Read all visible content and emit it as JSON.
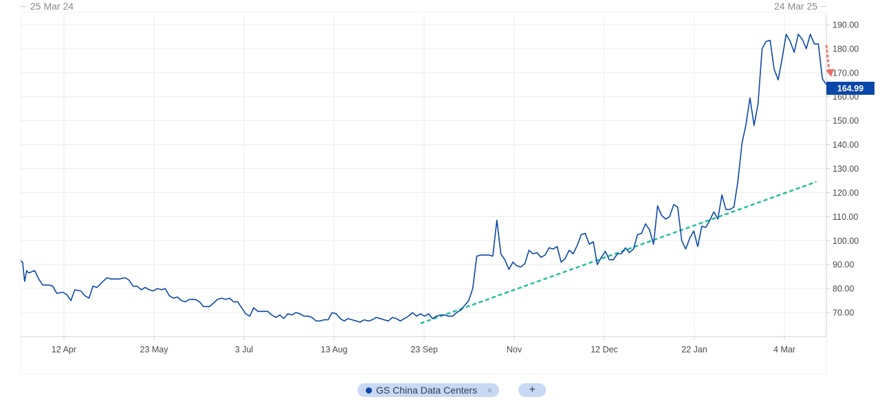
{
  "range": {
    "start": "25 Mar 24",
    "end": "24 Mar 25"
  },
  "legend": {
    "series_label": "GS China Data Centers",
    "close_glyph": "×",
    "add_glyph": "+"
  },
  "colors": {
    "series": "#0b47a8",
    "trendline": "#1fbf9a",
    "arrow": "#e8706a",
    "grid": "#ececec",
    "axis": "#cfcfcf"
  },
  "chart_data": {
    "type": "line",
    "series": [
      {
        "name": "GS China Data Centers",
        "values": [
          [
            "2024-03-25",
            91.5
          ],
          [
            "2024-03-26",
            91
          ],
          [
            "2024-03-27",
            83
          ],
          [
            "2024-03-28",
            87.5
          ],
          [
            "2024-03-29",
            86.5
          ],
          [
            "2024-04-01",
            87.5
          ],
          [
            "2024-04-03",
            84
          ],
          [
            "2024-04-05",
            81.5
          ],
          [
            "2024-04-08",
            81.5
          ],
          [
            "2024-04-10",
            81
          ],
          [
            "2024-04-12",
            78
          ],
          [
            "2024-04-15",
            78.5
          ],
          [
            "2024-04-17",
            77.5
          ],
          [
            "2024-04-19",
            75
          ],
          [
            "2024-04-21",
            79.5
          ],
          [
            "2024-04-24",
            79
          ],
          [
            "2024-04-26",
            77
          ],
          [
            "2024-04-28",
            76
          ],
          [
            "2024-04-30",
            81
          ],
          [
            "2024-05-02",
            80.5
          ],
          [
            "2024-05-05",
            83
          ],
          [
            "2024-05-07",
            84.5
          ],
          [
            "2024-05-09",
            84
          ],
          [
            "2024-05-13",
            84
          ],
          [
            "2024-05-16",
            84.5
          ],
          [
            "2024-05-18",
            83.5
          ],
          [
            "2024-05-20",
            81
          ],
          [
            "2024-05-22",
            81
          ],
          [
            "2024-05-24",
            79.5
          ],
          [
            "2024-05-26",
            80.5
          ],
          [
            "2024-05-28",
            79.5
          ],
          [
            "2024-05-30",
            79
          ],
          [
            "2024-06-01",
            80
          ],
          [
            "2024-06-03",
            79.5
          ],
          [
            "2024-06-05",
            80
          ],
          [
            "2024-06-07",
            77
          ],
          [
            "2024-06-09",
            76
          ],
          [
            "2024-06-11",
            76.5
          ],
          [
            "2024-06-13",
            75
          ],
          [
            "2024-06-15",
            74.5
          ],
          [
            "2024-06-17",
            75.5
          ],
          [
            "2024-06-20",
            75.5
          ],
          [
            "2024-06-22",
            74.5
          ],
          [
            "2024-06-24",
            72.5
          ],
          [
            "2024-06-27",
            72.5
          ],
          [
            "2024-06-29",
            74
          ],
          [
            "2024-07-01",
            75.5
          ],
          [
            "2024-07-03",
            76
          ],
          [
            "2024-07-05",
            75.5
          ],
          [
            "2024-07-07",
            76
          ],
          [
            "2024-07-09",
            74.5
          ],
          [
            "2024-07-11",
            74.5
          ],
          [
            "2024-07-13",
            72
          ],
          [
            "2024-07-15",
            69.5
          ],
          [
            "2024-07-17",
            68.5
          ],
          [
            "2024-07-19",
            72
          ],
          [
            "2024-07-21",
            70.5
          ],
          [
            "2024-07-24",
            70.5
          ],
          [
            "2024-07-26",
            70.5
          ],
          [
            "2024-07-28",
            69
          ],
          [
            "2024-07-30",
            68
          ],
          [
            "2024-08-01",
            69
          ],
          [
            "2024-08-03",
            67.5
          ],
          [
            "2024-08-05",
            69.5
          ],
          [
            "2024-08-07",
            69
          ],
          [
            "2024-08-09",
            70
          ],
          [
            "2024-08-11",
            69.5
          ],
          [
            "2024-08-13",
            68.5
          ],
          [
            "2024-08-15",
            68.5
          ],
          [
            "2024-08-17",
            68
          ],
          [
            "2024-08-19",
            66.5
          ],
          [
            "2024-08-21",
            66.5
          ],
          [
            "2024-08-23",
            67
          ],
          [
            "2024-08-25",
            67
          ],
          [
            "2024-08-27",
            70
          ],
          [
            "2024-08-29",
            69.5
          ],
          [
            "2024-08-31",
            67.5
          ],
          [
            "2024-09-02",
            66.5
          ],
          [
            "2024-09-04",
            67.5
          ],
          [
            "2024-09-06",
            67
          ],
          [
            "2024-09-08",
            66.5
          ],
          [
            "2024-09-10",
            66
          ],
          [
            "2024-09-12",
            67
          ],
          [
            "2024-09-14",
            66.5
          ],
          [
            "2024-09-16",
            67
          ],
          [
            "2024-09-18",
            68
          ],
          [
            "2024-09-20",
            67.5
          ],
          [
            "2024-09-22",
            67
          ],
          [
            "2024-09-24",
            66.5
          ],
          [
            "2024-09-26",
            68
          ],
          [
            "2024-09-28",
            67.5
          ],
          [
            "2024-09-30",
            66.5
          ],
          [
            "2024-10-02",
            67.5
          ],
          [
            "2024-10-04",
            68.5
          ],
          [
            "2024-10-06",
            70
          ],
          [
            "2024-10-08",
            68.5
          ],
          [
            "2024-10-10",
            69.5
          ],
          [
            "2024-10-12",
            68.5
          ],
          [
            "2024-10-14",
            69.5
          ],
          [
            "2024-10-16",
            67.5
          ],
          [
            "2024-10-18",
            68.5
          ],
          [
            "2024-10-20",
            69
          ],
          [
            "2024-10-22",
            69
          ],
          [
            "2024-10-24",
            68.5
          ],
          [
            "2024-10-26",
            68.5
          ],
          [
            "2024-10-28",
            70
          ],
          [
            "2024-10-30",
            71
          ],
          [
            "2024-11-01",
            73
          ],
          [
            "2024-11-03",
            75
          ],
          [
            "2024-11-05",
            80
          ],
          [
            "2024-11-07",
            93.5
          ],
          [
            "2024-11-09",
            94
          ],
          [
            "2024-11-11",
            94
          ],
          [
            "2024-11-13",
            94
          ],
          [
            "2024-11-15",
            93.5
          ],
          [
            "2024-11-17",
            108.5
          ],
          [
            "2024-11-19",
            94.5
          ],
          [
            "2024-11-21",
            92
          ],
          [
            "2024-11-23",
            88
          ],
          [
            "2024-11-25",
            91
          ],
          [
            "2024-11-27",
            89.5
          ],
          [
            "2024-11-29",
            89
          ],
          [
            "2024-12-01",
            90.5
          ],
          [
            "2024-12-03",
            96
          ],
          [
            "2024-12-05",
            94.5
          ],
          [
            "2024-12-07",
            95
          ],
          [
            "2024-12-09",
            93
          ],
          [
            "2024-12-11",
            94
          ],
          [
            "2024-12-13",
            97
          ],
          [
            "2024-12-15",
            96.5
          ],
          [
            "2024-12-17",
            97.5
          ],
          [
            "2024-12-19",
            91
          ],
          [
            "2024-12-21",
            92.5
          ],
          [
            "2024-12-23",
            96
          ],
          [
            "2024-12-25",
            94.5
          ],
          [
            "2024-12-27",
            98
          ],
          [
            "2024-12-29",
            102.5
          ],
          [
            "2024-12-31",
            103
          ],
          [
            "2025-01-02",
            98.5
          ],
          [
            "2025-01-04",
            99.5
          ],
          [
            "2025-01-06",
            90
          ],
          [
            "2025-01-08",
            93
          ],
          [
            "2025-01-10",
            95.5
          ],
          [
            "2025-01-12",
            92
          ],
          [
            "2025-01-14",
            92
          ],
          [
            "2025-01-16",
            94.5
          ],
          [
            "2025-01-18",
            94.5
          ],
          [
            "2025-01-20",
            97
          ],
          [
            "2025-01-22",
            95
          ],
          [
            "2025-01-24",
            96.5
          ],
          [
            "2025-01-26",
            102.5
          ],
          [
            "2025-01-28",
            103
          ],
          [
            "2025-01-30",
            107
          ],
          [
            "2025-02-01",
            104.5
          ],
          [
            "2025-02-03",
            98.5
          ],
          [
            "2025-02-05",
            114.5
          ],
          [
            "2025-02-07",
            110.5
          ],
          [
            "2025-02-09",
            109
          ],
          [
            "2025-02-11",
            110
          ],
          [
            "2025-02-13",
            115
          ],
          [
            "2025-02-15",
            114
          ],
          [
            "2025-02-17",
            100
          ],
          [
            "2025-02-19",
            96.5
          ],
          [
            "2025-02-21",
            101
          ],
          [
            "2025-02-23",
            104
          ],
          [
            "2025-02-25",
            97.5
          ],
          [
            "2025-02-27",
            106
          ],
          [
            "2025-03-01",
            105.5
          ],
          [
            "2025-03-03",
            108.5
          ],
          [
            "2025-03-05",
            112
          ],
          [
            "2025-03-07",
            109
          ],
          [
            "2025-03-09",
            119
          ],
          [
            "2025-03-11",
            113
          ],
          [
            "2025-03-13",
            113
          ],
          [
            "2025-03-15",
            114
          ],
          [
            "2025-03-17",
            125
          ],
          [
            "2025-03-19",
            140.5
          ],
          [
            "2025-03-21",
            148.5
          ],
          [
            "2025-03-23",
            159.5
          ],
          [
            "2025-03-25",
            148
          ],
          [
            "2025-03-27",
            157
          ],
          [
            "2025-03-29",
            180
          ],
          [
            "2025-03-31",
            183
          ],
          [
            "2025-04-02",
            183.5
          ],
          [
            "2025-04-04",
            171.5
          ],
          [
            "2025-04-06",
            167
          ],
          [
            "2025-04-08",
            176
          ],
          [
            "2025-04-10",
            186
          ],
          [
            "2025-04-12",
            183
          ],
          [
            "2025-04-14",
            178.5
          ],
          [
            "2025-04-16",
            186
          ],
          [
            "2025-04-18",
            184
          ],
          [
            "2025-04-20",
            180
          ],
          [
            "2025-04-22",
            186
          ],
          [
            "2025-04-24",
            182
          ],
          [
            "2025-04-26",
            182
          ],
          [
            "2025-04-28",
            167.5
          ],
          [
            "2025-04-30",
            164.99
          ]
        ]
      }
    ],
    "x_tick_labels": [
      "12 Apr",
      "23 May",
      "3 Jul",
      "13 Aug",
      "23 Sep",
      "Nov",
      "12 Dec",
      "22 Jan",
      "4 Mar"
    ],
    "y_ticks": [
      "70.00",
      "80.00",
      "90.00",
      "100.00",
      "110.00",
      "120.00",
      "130.00",
      "140.00",
      "150.00",
      "160.00",
      "170.00",
      "180.00",
      "190.00"
    ],
    "ylim": [
      60,
      194
    ],
    "last_value_label": "164.99",
    "trendline": {
      "from": [
        "2024-10-10",
        65.5
      ],
      "to": [
        "2025-04-25",
        124.5
      ]
    },
    "annotation_arrow": {
      "from": 181.5,
      "to": 168.5
    },
    "grid": true,
    "title": "",
    "xlabel": "",
    "ylabel": ""
  }
}
